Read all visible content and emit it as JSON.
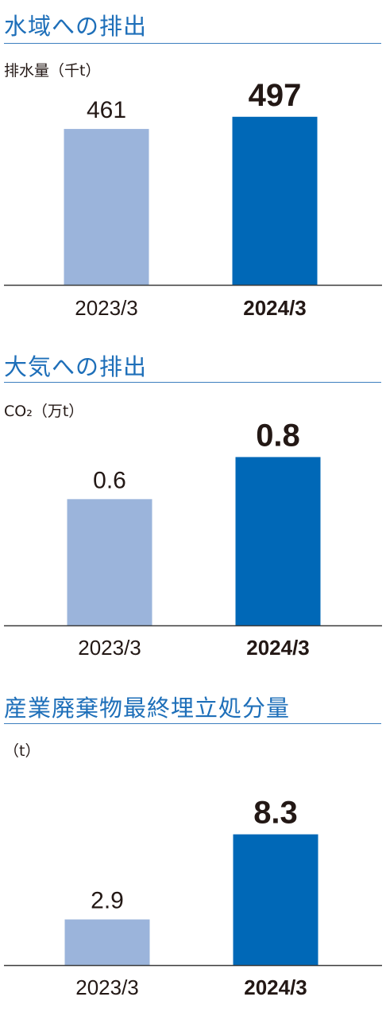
{
  "colors": {
    "title": "#1e6fb9",
    "bar_prev": "#9bb4db",
    "bar_curr": "#0068b7",
    "axis": "#3a3a3a"
  },
  "chart_data": [
    {
      "type": "bar",
      "title": "水域への排出",
      "ylabel": "排水量（千t）",
      "categories": [
        "2023/3",
        "2024/3"
      ],
      "values": [
        461,
        497
      ],
      "ylim": [
        0,
        560
      ],
      "grid": false
    },
    {
      "type": "bar",
      "title": "大気への排出",
      "ylabel": "CO₂（万t）",
      "categories": [
        "2023/3",
        "2024/3"
      ],
      "values": [
        0.6,
        0.8
      ],
      "ylim": [
        0,
        0.9
      ],
      "grid": false
    },
    {
      "type": "bar",
      "title": "産業廃棄物最終埋立処分量",
      "ylabel": "（t）",
      "categories": [
        "2023/3",
        "2024/3"
      ],
      "values": [
        2.9,
        8.3
      ],
      "ylim": [
        0,
        10.3
      ],
      "grid": false
    }
  ]
}
